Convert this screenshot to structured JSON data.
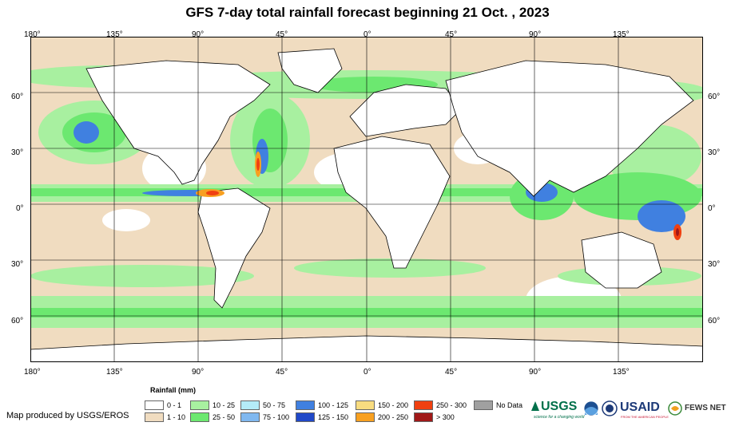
{
  "title": "GFS 7-day total rainfall forecast beginning 21 Oct. , 2023",
  "lon_labels": [
    "180°",
    "135°",
    "90°",
    "45°",
    "0°",
    "45°",
    "90°",
    "135°"
  ],
  "lat_labels": [
    "60°",
    "30°",
    "0°",
    "30°",
    "60°"
  ],
  "legend": {
    "title": "Rainfall (mm)",
    "items": [
      {
        "label": "0 - 1",
        "color": "#ffffff"
      },
      {
        "label": "1 - 10",
        "color": "#f0dcc0"
      },
      {
        "label": "10 - 25",
        "color": "#a8f0a0"
      },
      {
        "label": "25 - 50",
        "color": "#6ce870"
      },
      {
        "label": "50 - 75",
        "color": "#b4ecf8"
      },
      {
        "label": "75 - 100",
        "color": "#80b8f0"
      },
      {
        "label": "100 - 125",
        "color": "#4080e0"
      },
      {
        "label": "125 - 150",
        "color": "#2048c8"
      },
      {
        "label": "150 - 200",
        "color": "#f8dc80"
      },
      {
        "label": "200 - 250",
        "color": "#f8a020"
      },
      {
        "label": "250 - 300",
        "color": "#f04010"
      },
      {
        "label": "> 300",
        "color": "#a01818"
      },
      {
        "label": "No Data",
        "color": "#a0a0a0"
      }
    ]
  },
  "credit": "Map produced by USGS/EROS",
  "logos": {
    "usgs": "USGS",
    "usgs_tag": "science for a changing world",
    "usaid": "USAID",
    "usaid_tag": "FROM THE AMERICAN PEOPLE",
    "fews": "FEWS NET"
  },
  "colors": {
    "ocean_dry": "#f0dcc0",
    "light_green": "#a8f0a0",
    "green": "#6ce870",
    "blue": "#4080e0",
    "dark_blue": "#2048c8",
    "orange": "#f8a020",
    "red": "#f04010",
    "dark_red": "#a01818"
  }
}
